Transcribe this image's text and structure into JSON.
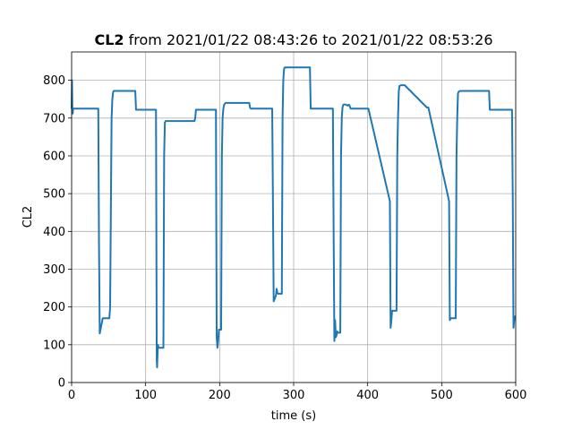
{
  "chart_data": {
    "type": "line",
    "title_bold": "CL2",
    "title_rest": " from 2021/01/22 08:43:26 to 2021/01/22 08:53:26",
    "xlabel": "time (s)",
    "ylabel": "CL2",
    "xlim": [
      0,
      600
    ],
    "ylim": [
      0,
      875
    ],
    "xticks": [
      0,
      100,
      200,
      300,
      400,
      500,
      600
    ],
    "yticks": [
      0,
      100,
      200,
      300,
      400,
      500,
      600,
      700,
      800
    ],
    "grid": true,
    "color": "#1f77b4",
    "series": [
      {
        "x": [
          0,
          0.5,
          1,
          1.5,
          2,
          36,
          37,
          38,
          41,
          42,
          51,
          52,
          54,
          55,
          56,
          57,
          60,
          86,
          87,
          114,
          114.5,
          115,
          115.5,
          116,
          116.5,
          117,
          118,
          124,
          125,
          126,
          127,
          165,
          166,
          167,
          168,
          169,
          195,
          195.5,
          196,
          197,
          198,
          199,
          202,
          203,
          204,
          205,
          206,
          207,
          208,
          209,
          210,
          240,
          241,
          242,
          271,
          272,
          273,
          276,
          277,
          278,
          279,
          280,
          284,
          285,
          286,
          287,
          288,
          289,
          290,
          291,
          292,
          322,
          323,
          324,
          353,
          354,
          355,
          356,
          357,
          358,
          359,
          360,
          363,
          364,
          365,
          366,
          367,
          368,
          370,
          372,
          373,
          374,
          375,
          377,
          399,
          400,
          401,
          430,
          431,
          432,
          433,
          434,
          439,
          440,
          441,
          442,
          443,
          444,
          445,
          448,
          449,
          450,
          480,
          481,
          482,
          510,
          511,
          512,
          513,
          514,
          519,
          520,
          521,
          522,
          523,
          524,
          526,
          528,
          564,
          565,
          566,
          595,
          596,
          597,
          598,
          599,
          600
        ],
        "y": [
          725,
          800,
          715,
          712,
          725,
          725,
          360,
          130,
          160,
          170,
          170,
          200,
          700,
          750,
          768,
          772,
          772,
          772,
          722,
          722,
          400,
          60,
          40,
          70,
          100,
          95,
          92,
          92,
          600,
          688,
          692,
          692,
          692,
          700,
          722,
          722,
          722,
          400,
          120,
          92,
          110,
          140,
          140,
          600,
          700,
          725,
          735,
          738,
          740,
          740,
          740,
          740,
          728,
          725,
          725,
          480,
          215,
          230,
          248,
          238,
          235,
          235,
          235,
          700,
          800,
          830,
          834,
          834,
          834,
          834,
          834,
          834,
          725,
          725,
          725,
          400,
          110,
          165,
          120,
          125,
          135,
          132,
          132,
          600,
          700,
          728,
          735,
          736,
          736,
          734,
          733,
          735,
          735,
          725,
          725,
          725,
          725,
          480,
          145,
          165,
          190,
          190,
          190,
          600,
          700,
          770,
          785,
          786,
          787,
          787,
          787,
          787,
          728,
          728,
          728,
          480,
          165,
          170,
          170,
          170,
          170,
          600,
          700,
          765,
          770,
          771,
          772,
          772,
          772,
          722,
          722,
          722,
          500,
          145,
          165,
          175,
          175
        ]
      }
    ]
  }
}
